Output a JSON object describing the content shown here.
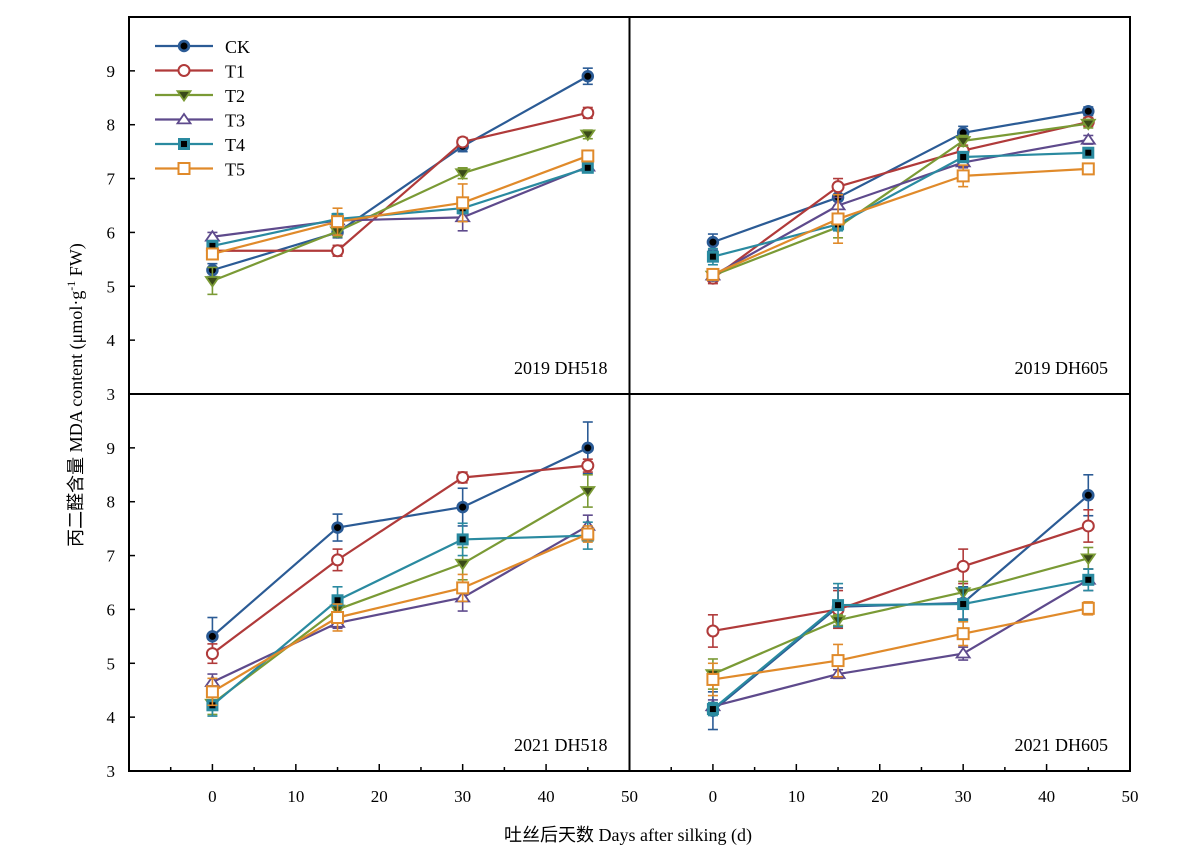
{
  "chart_data": {
    "type": "line",
    "xlabel": "吐丝后天数 Days after silking (d)",
    "ylabel": "丙二醛含量 MDA content (μmol·g",
    "ylabel_sup": "-1",
    "ylabel_tail": " FW)",
    "xlim": [
      -10,
      50
    ],
    "ylim": [
      3,
      10
    ],
    "x_ticks": [
      "0",
      "10",
      "20",
      "30",
      "40",
      "50"
    ],
    "y_ticks": [
      "3",
      "4",
      "5",
      "6",
      "7",
      "8",
      "9"
    ],
    "x": [
      0,
      15,
      30,
      45
    ],
    "grid": false,
    "legend_position": "top-left",
    "series_style": [
      {
        "name": "CK",
        "color": "#2b5b95",
        "marker": "circle-filled"
      },
      {
        "name": "T1",
        "color": "#b03a3a",
        "marker": "circle-open"
      },
      {
        "name": "T2",
        "color": "#7a9a35",
        "marker": "triangle-down-filled"
      },
      {
        "name": "T3",
        "color": "#5e4a8c",
        "marker": "triangle-up-open"
      },
      {
        "name": "T4",
        "color": "#2a8aa0",
        "marker": "square-filled"
      },
      {
        "name": "T5",
        "color": "#e08a2a",
        "marker": "square-open"
      }
    ],
    "panels": [
      {
        "label": "2019 DH518",
        "series": [
          {
            "name": "CK",
            "values": [
              5.3,
              6.0,
              7.6,
              8.9
            ],
            "errors": [
              0.12,
              0.1,
              0.1,
              0.15
            ]
          },
          {
            "name": "T1",
            "values": [
              5.66,
              5.66,
              7.68,
              8.22
            ],
            "errors": [
              0.08,
              0.1,
              0.08,
              0.1
            ]
          },
          {
            "name": "T2",
            "values": [
              5.1,
              6.02,
              7.1,
              7.82
            ],
            "errors": [
              0.25,
              0.1,
              0.1,
              0.08
            ]
          },
          {
            "name": "T3",
            "values": [
              5.92,
              6.22,
              6.28,
              7.22
            ],
            "errors": [
              0.08,
              0.12,
              0.25,
              0.08
            ]
          },
          {
            "name": "T4",
            "values": [
              5.75,
              6.25,
              6.45,
              7.2
            ],
            "errors": [
              0.08,
              0.1,
              0.1,
              0.08
            ]
          },
          {
            "name": "T5",
            "values": [
              5.6,
              6.2,
              6.55,
              7.42
            ],
            "errors": [
              0.1,
              0.25,
              0.35,
              0.1
            ]
          }
        ]
      },
      {
        "label": "2019 DH605",
        "series": [
          {
            "name": "CK",
            "values": [
              5.82,
              6.65,
              7.85,
              8.25
            ],
            "errors": [
              0.15,
              0.15,
              0.12,
              0.08
            ]
          },
          {
            "name": "T1",
            "values": [
              5.15,
              6.85,
              7.52,
              8.05
            ],
            "errors": [
              0.1,
              0.15,
              0.1,
              0.08
            ]
          },
          {
            "name": "T2",
            "values": [
              5.2,
              6.1,
              7.7,
              8.02
            ],
            "errors": [
              0.1,
              0.2,
              0.1,
              0.08
            ]
          },
          {
            "name": "T3",
            "values": [
              5.2,
              6.5,
              7.3,
              7.72
            ],
            "errors": [
              0.1,
              0.15,
              0.1,
              0.08
            ]
          },
          {
            "name": "T4",
            "values": [
              5.55,
              6.15,
              7.4,
              7.48
            ],
            "errors": [
              0.15,
              0.12,
              0.1,
              0.08
            ]
          },
          {
            "name": "T5",
            "values": [
              5.22,
              6.25,
              7.05,
              7.18
            ],
            "errors": [
              0.08,
              0.45,
              0.2,
              0.08
            ]
          }
        ]
      },
      {
        "label": "2021 DH518",
        "series": [
          {
            "name": "CK",
            "values": [
              5.5,
              7.52,
              7.9,
              9.0
            ],
            "errors": [
              0.35,
              0.25,
              0.35,
              0.48
            ]
          },
          {
            "name": "T1",
            "values": [
              5.18,
              6.92,
              8.45,
              8.67
            ],
            "errors": [
              0.18,
              0.2,
              0.1,
              0.12
            ]
          },
          {
            "name": "T2",
            "values": [
              4.25,
              6.0,
              6.85,
              8.2
            ],
            "errors": [
              0.2,
              0.2,
              0.3,
              0.3
            ]
          },
          {
            "name": "T3",
            "values": [
              4.65,
              5.75,
              6.22,
              7.55
            ],
            "errors": [
              0.15,
              0.1,
              0.25,
              0.2
            ]
          },
          {
            "name": "T4",
            "values": [
              4.22,
              6.17,
              7.3,
              7.37
            ],
            "errors": [
              0.2,
              0.25,
              0.3,
              0.25
            ]
          },
          {
            "name": "T5",
            "values": [
              4.47,
              5.85,
              6.4,
              7.4
            ],
            "errors": [
              0.25,
              0.25,
              0.25,
              0.15
            ]
          }
        ]
      },
      {
        "label": "2021 DH605",
        "series": [
          {
            "name": "CK",
            "values": [
              4.12,
              6.05,
              6.12,
              8.12
            ],
            "errors": [
              0.35,
              0.35,
              0.3,
              0.38
            ]
          },
          {
            "name": "T1",
            "values": [
              5.6,
              6.0,
              6.8,
              7.55
            ],
            "errors": [
              0.3,
              0.35,
              0.32,
              0.3
            ]
          },
          {
            "name": "T2",
            "values": [
              4.8,
              5.8,
              6.32,
              6.95
            ],
            "errors": [
              0.28,
              0.1,
              0.2,
              0.2
            ]
          },
          {
            "name": "T3",
            "values": [
              4.2,
              4.8,
              5.18,
              6.55
            ],
            "errors": [
              0.12,
              0.08,
              0.12,
              0.2
            ]
          },
          {
            "name": "T4",
            "values": [
              4.15,
              6.08,
              6.1,
              6.55
            ],
            "errors": [
              0.12,
              0.4,
              0.3,
              0.2
            ]
          },
          {
            "name": "T5",
            "values": [
              4.7,
              5.05,
              5.55,
              6.02
            ],
            "errors": [
              0.3,
              0.3,
              0.22,
              0.12
            ]
          }
        ]
      }
    ]
  }
}
